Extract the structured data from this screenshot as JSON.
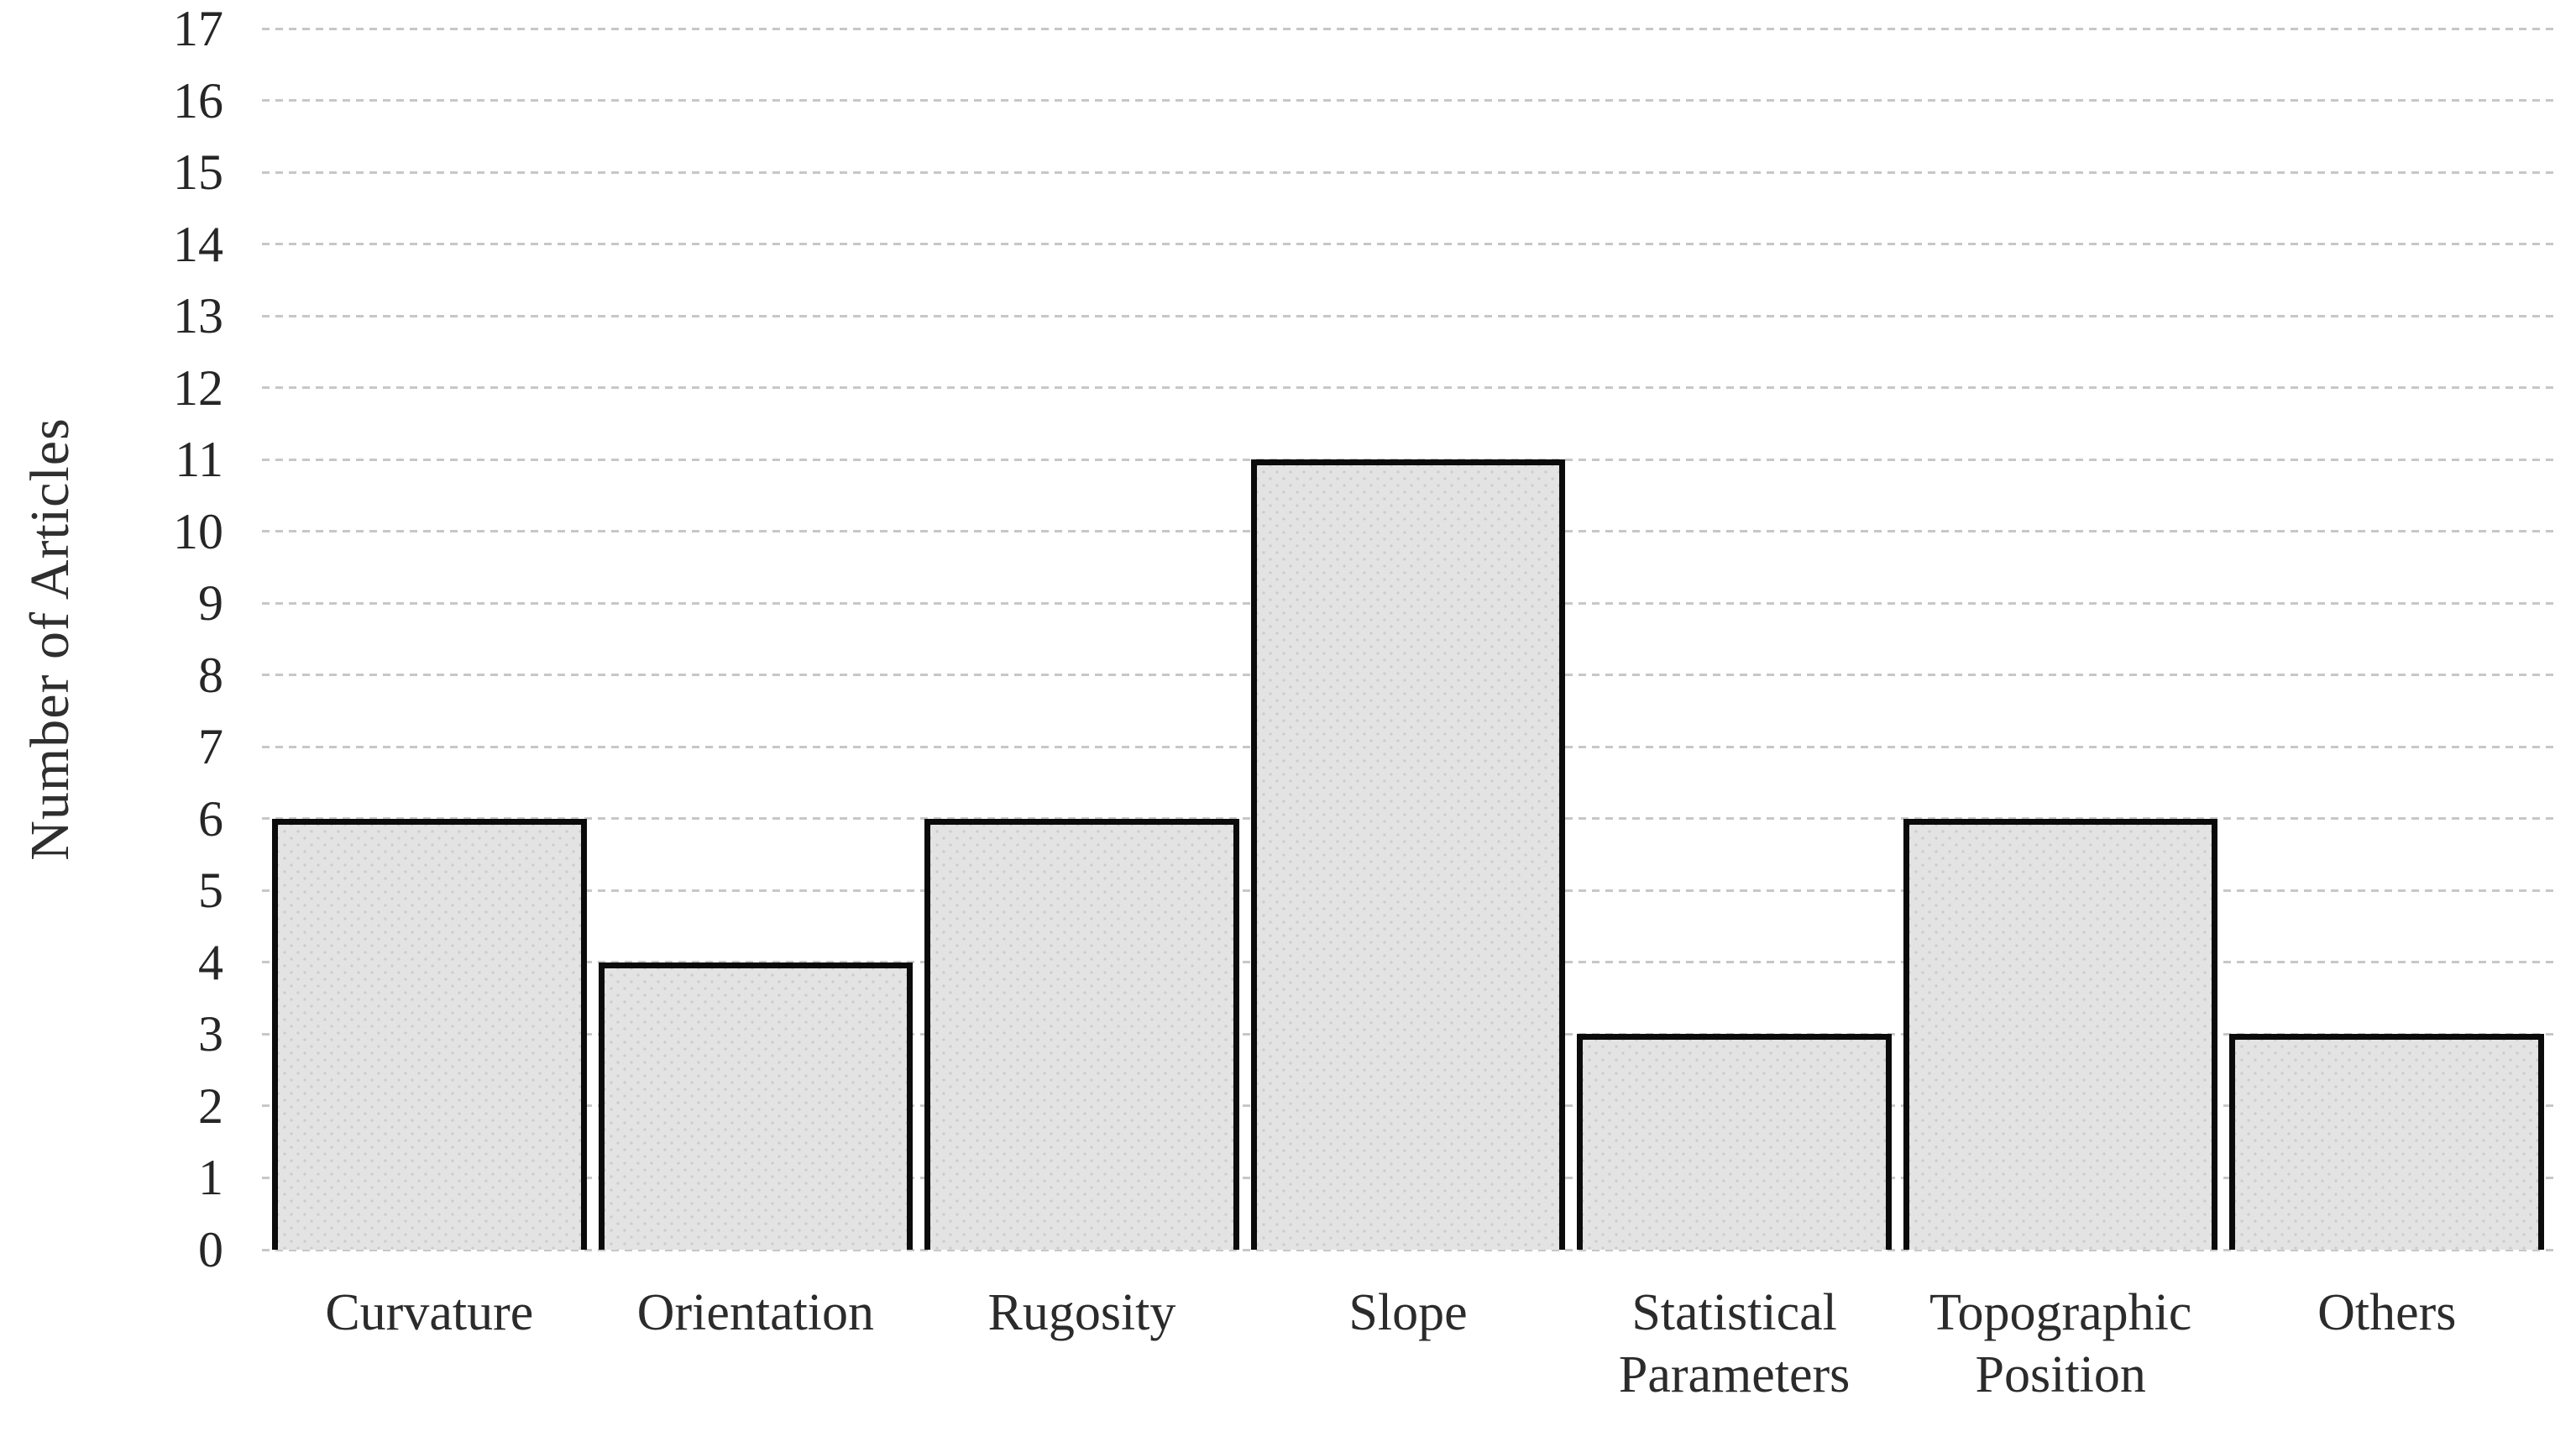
{
  "chart_data": {
    "type": "bar",
    "title": "",
    "categories": [
      "Curvature",
      "Orientation",
      "Rugosity",
      "Slope",
      "Statistical\nParameters",
      "Topographic\nPosition",
      "Others"
    ],
    "values": [
      6,
      4,
      6,
      11,
      3,
      6,
      3
    ],
    "xlabel": "",
    "ylabel": "Number of Articles",
    "ylim": [
      0,
      17
    ],
    "ytick_step": 1,
    "yticks": [
      0,
      1,
      2,
      3,
      4,
      5,
      6,
      7,
      8,
      9,
      10,
      11,
      12,
      13,
      14,
      15,
      16,
      17
    ],
    "grid": true,
    "gridline_style": "dashed",
    "legend_position": "none",
    "colors": {
      "bar_fill": "#e3e3e3",
      "bar_pattern_dot": "#cccccc",
      "bar_border": "#0b0b0b",
      "gridline": "#c7c7c7",
      "text": "#2b2b2b",
      "background": "#ffffff"
    }
  }
}
